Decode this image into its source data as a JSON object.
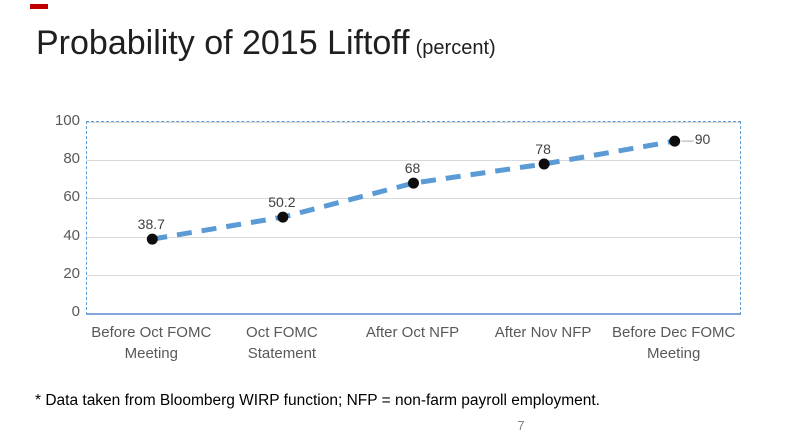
{
  "slide": {
    "title": "Probability of 2015 Liftoff",
    "title_suffix": "(percent)",
    "footnote": "* Data taken from Bloomberg WIRP function; NFP = non-farm payroll employment.",
    "page_number": "7",
    "accent_color": "#C00000"
  },
  "chart_data": {
    "type": "line",
    "title": "Probability of 2015 Liftoff (percent)",
    "categories": [
      "Before Oct FOMC Meeting",
      "Oct FOMC Statement",
      "After Oct NFP",
      "After Nov NFP",
      "Before Dec FOMC Meeting"
    ],
    "values": [
      38.7,
      50.2,
      68,
      78,
      90
    ],
    "point_labels": [
      "38.7",
      "50.2",
      "68",
      "78",
      "90"
    ],
    "point_label_positions": [
      "above",
      "above",
      "above",
      "above",
      "right"
    ],
    "xlabel": "",
    "ylabel": "",
    "ylim": [
      0,
      100
    ],
    "yticks": [
      0,
      20,
      40,
      60,
      80,
      100
    ],
    "grid": true,
    "legend": "none",
    "line_style": "dashed",
    "line_color": "#5B9BD5",
    "marker_color": "#0D0D0D",
    "axis_line_color": "#7FA8D8",
    "gridline_color": "#D9D9D9",
    "tick_label_color": "#595959",
    "leader_line_color": "#A6A6A6"
  }
}
